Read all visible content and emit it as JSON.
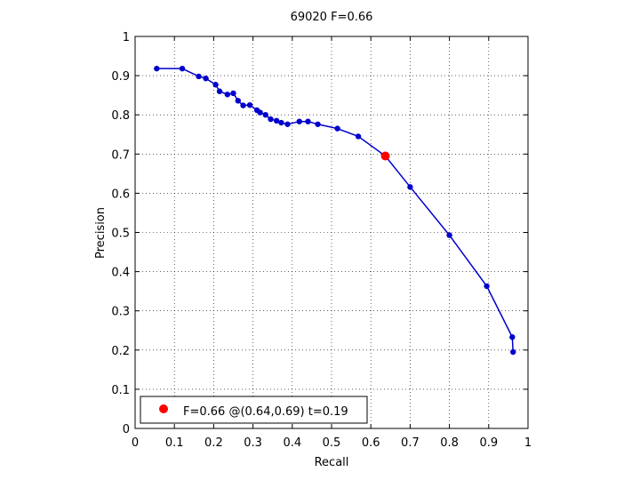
{
  "colors": {
    "series": "#0000cc",
    "best_point": "#ff0000",
    "axes": "#000000",
    "background": "#ffffff"
  },
  "chart_data": {
    "type": "line",
    "title": "69020 F=0.66",
    "xlabel": "Recall",
    "ylabel": "Precision",
    "xlim": [
      0,
      1
    ],
    "ylim": [
      0,
      1
    ],
    "grid": true,
    "legend_placement": "bottom-left",
    "x_ticks": [
      "0",
      "0.1",
      "0.2",
      "0.3",
      "0.4",
      "0.5",
      "0.6",
      "0.7",
      "0.8",
      "0.9",
      "1"
    ],
    "y_ticks": [
      "0",
      "0.1",
      "0.2",
      "0.3",
      "0.4",
      "0.5",
      "0.6",
      "0.7",
      "0.8",
      "0.9",
      "1"
    ],
    "series": [
      {
        "x": [
          0.055,
          0.12,
          0.162,
          0.18,
          0.205,
          0.215,
          0.235,
          0.25,
          0.262,
          0.275,
          0.292,
          0.31,
          0.318,
          0.332,
          0.345,
          0.36,
          0.372,
          0.388,
          0.418,
          0.44,
          0.465,
          0.515,
          0.568,
          0.637,
          0.7,
          0.8,
          0.895,
          0.96,
          0.962
        ],
        "y": [
          0.918,
          0.918,
          0.898,
          0.893,
          0.877,
          0.86,
          0.852,
          0.855,
          0.836,
          0.824,
          0.825,
          0.812,
          0.806,
          0.8,
          0.789,
          0.785,
          0.78,
          0.776,
          0.783,
          0.783,
          0.776,
          0.765,
          0.745,
          0.695,
          0.616,
          0.493,
          0.363,
          0.233,
          0.195
        ]
      }
    ],
    "best_point": {
      "x": 0.637,
      "y": 0.695
    },
    "legend": {
      "label": "F=0.66 @(0.64,0.69) t=0.19"
    }
  }
}
